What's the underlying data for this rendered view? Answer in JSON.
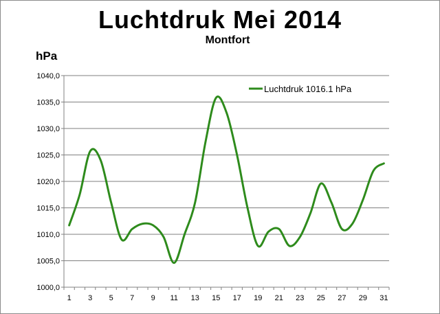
{
  "header": {
    "title": "Luchtdruk Mei 2014",
    "subtitle": "Montfort",
    "unit": "hPa"
  },
  "colors": {
    "series": "#2e8b1c",
    "grid": "#7f7f7f",
    "axis": "#808080"
  },
  "chart_data": {
    "type": "line",
    "title": "Luchtdruk Mei 2014",
    "subtitle": "Montfort",
    "ylabel": "hPa",
    "xlabel": "",
    "ylim": [
      1000,
      1040
    ],
    "y_ticks": [
      "1000,0",
      "1005,0",
      "1010,0",
      "1015,0",
      "1020,0",
      "1025,0",
      "1030,0",
      "1035,0",
      "1040,0"
    ],
    "x_tick_labels": [
      "1",
      "3",
      "5",
      "7",
      "9",
      "11",
      "13",
      "15",
      "17",
      "19",
      "21",
      "23",
      "25",
      "27",
      "29",
      "31"
    ],
    "x": [
      1,
      2,
      3,
      4,
      5,
      6,
      7,
      8,
      9,
      10,
      11,
      12,
      13,
      14,
      15,
      16,
      17,
      18,
      19,
      20,
      21,
      22,
      23,
      24,
      25,
      26,
      27,
      28,
      29,
      30,
      31
    ],
    "series": [
      {
        "name": "Luchtdruk 1016.1 hPa",
        "values": [
          1011.7,
          1017.5,
          1025.7,
          1024.0,
          1016.0,
          1009.0,
          1011.0,
          1012.0,
          1011.7,
          1009.5,
          1004.6,
          1010.0,
          1016.0,
          1027.5,
          1035.8,
          1033.0,
          1025.0,
          1015.0,
          1007.8,
          1010.5,
          1011.0,
          1007.8,
          1009.5,
          1014.0,
          1019.6,
          1016.0,
          1011.0,
          1012.0,
          1016.5,
          1022.0,
          1023.4
        ]
      }
    ],
    "legend": {
      "placement": "top-right"
    },
    "grid": true
  }
}
